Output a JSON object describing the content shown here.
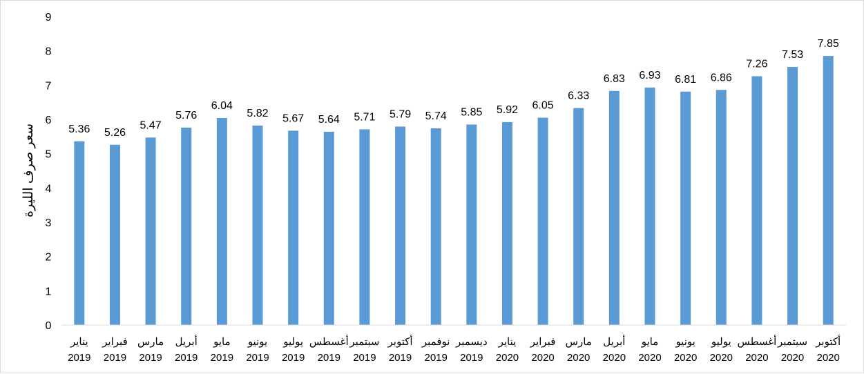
{
  "chart_data": {
    "type": "bar",
    "ylabel": "سعر صرف الليرة",
    "ylim": [
      0,
      9
    ],
    "yticks": [
      "0",
      "1",
      "2",
      "3",
      "4",
      "5",
      "6",
      "7",
      "8",
      "9"
    ],
    "grid": false,
    "bar_color": "#5b9bd5",
    "categories": [
      {
        "month": "يناير",
        "year": "2019"
      },
      {
        "month": "فبراير",
        "year": "2019"
      },
      {
        "month": "مارس",
        "year": "2019"
      },
      {
        "month": "أبريل",
        "year": "2019"
      },
      {
        "month": "مايو",
        "year": "2019"
      },
      {
        "month": "يونيو",
        "year": "2019"
      },
      {
        "month": "يوليو",
        "year": "2019"
      },
      {
        "month": "أغسطس",
        "year": "2019"
      },
      {
        "month": "سبتمبر",
        "year": "2019"
      },
      {
        "month": "أكتوبر",
        "year": "2019"
      },
      {
        "month": "نوفمبر",
        "year": "2019"
      },
      {
        "month": "ديسمبر",
        "year": "2019"
      },
      {
        "month": "يناير",
        "year": "2020"
      },
      {
        "month": "فبراير",
        "year": "2020"
      },
      {
        "month": "مارس",
        "year": "2020"
      },
      {
        "month": "أبريل",
        "year": "2020"
      },
      {
        "month": "مايو",
        "year": "2020"
      },
      {
        "month": "يونيو",
        "year": "2020"
      },
      {
        "month": "يوليو",
        "year": "2020"
      },
      {
        "month": "أغسطس",
        "year": "2020"
      },
      {
        "month": "سبتمبر",
        "year": "2020"
      },
      {
        "month": "أكتوبر",
        "year": "2020"
      }
    ],
    "values": [
      5.36,
      5.26,
      5.47,
      5.76,
      6.04,
      5.82,
      5.67,
      5.64,
      5.71,
      5.79,
      5.74,
      5.85,
      5.92,
      6.05,
      6.33,
      6.83,
      6.93,
      6.81,
      6.86,
      7.26,
      7.53,
      7.85
    ],
    "data_labels": [
      "5.36",
      "5.26",
      "5.47",
      "5.76",
      "6.04",
      "5.82",
      "5.67",
      "5.64",
      "5.71",
      "5.79",
      "5.74",
      "5.85",
      "5.92",
      "6.05",
      "6.33",
      "6.83",
      "6.93",
      "6.81",
      "6.86",
      "7.26",
      "7.53",
      "7.85"
    ]
  }
}
